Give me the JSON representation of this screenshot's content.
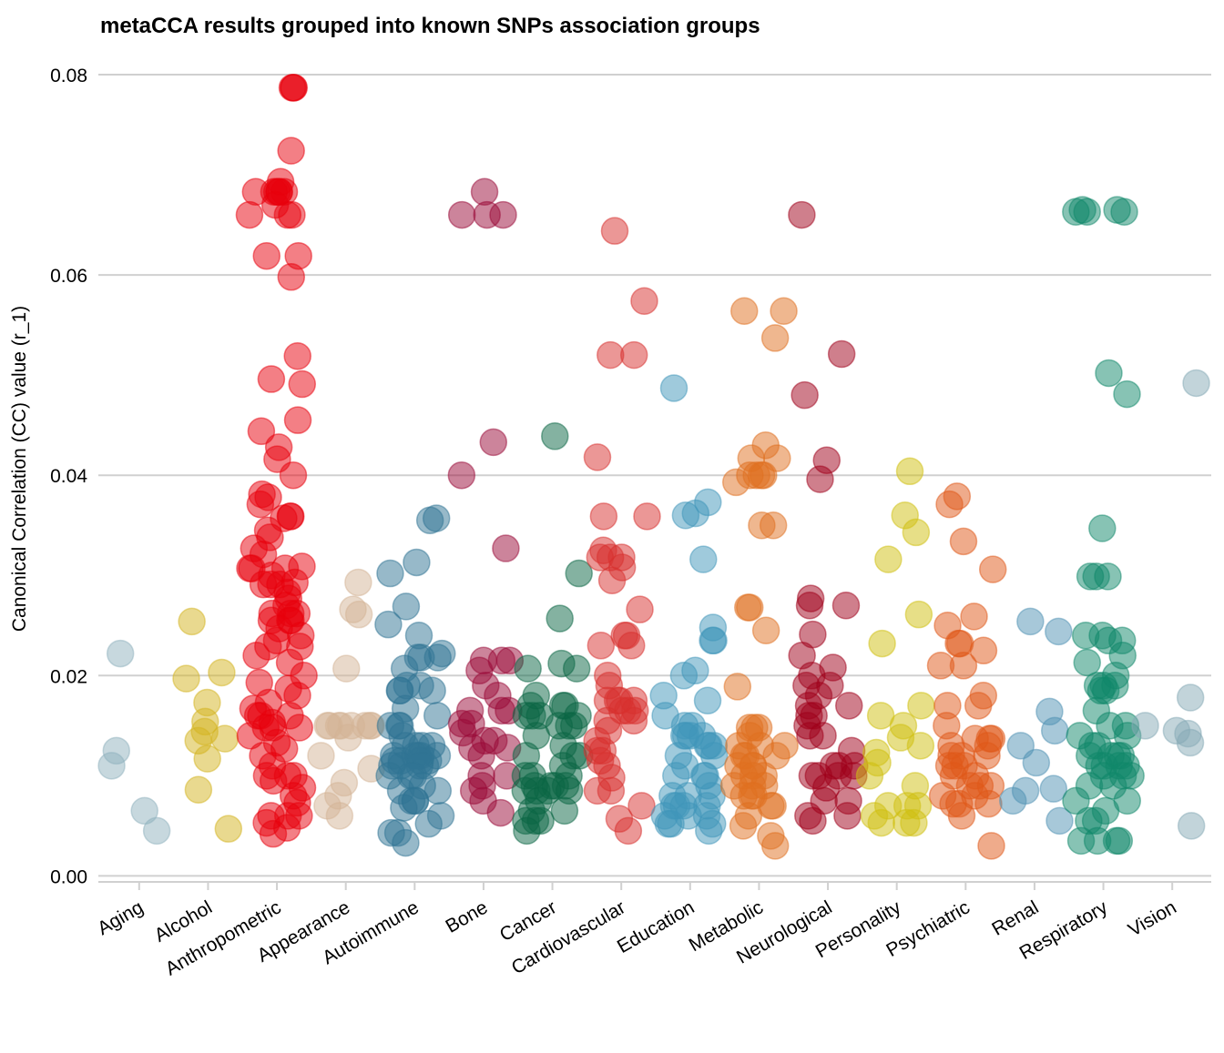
{
  "chart_data": {
    "type": "strip",
    "title": "metaCCA results grouped into known SNPs association groups",
    "y_label": "Canonical Correlation (CC) value (r_1)",
    "categories": [
      "Aging",
      "Alcohol",
      "Anthropometric",
      "Appearance",
      "Autoimmune",
      "Bone",
      "Cancer",
      "Cardiovascular",
      "Education",
      "Metabolic",
      "Neurological",
      "Personality",
      "Psychiatric",
      "Renal",
      "Respiratory",
      "Vision"
    ],
    "colors": [
      "#8fb2bd",
      "#d4b320",
      "#e8000b",
      "#d4b395",
      "#2f7393",
      "#990a38",
      "#0a6644",
      "#d8302e",
      "#3f95b9",
      "#e07020",
      "#a0001a",
      "#d0c010",
      "#e05818",
      "#4f92b4",
      "#10876a",
      "#86aab6"
    ],
    "ylim": [
      -0.0006,
      0.082
    ],
    "yticks": [
      {
        "value": 0,
        "label": "0.00"
      },
      0.02,
      0.04,
      0.06,
      0.08
    ],
    "grid": true,
    "values": [
      [
        0.011,
        0.0045,
        0.0125,
        0.0065,
        0.0222
      ],
      [
        0.0086,
        0.0197,
        0.0173,
        0.0135,
        0.0154,
        0.0254,
        0.0047,
        0.0137,
        0.0203,
        0.0144,
        0.0117
      ],
      [
        0.0787,
        0.0787,
        0.0787,
        0.0724,
        0.0683,
        0.0683,
        0.0683,
        0.0683,
        0.0683,
        0.0683,
        0.0693,
        0.067,
        0.066,
        0.066,
        0.066,
        0.0619,
        0.0619,
        0.0598,
        0.0519,
        0.0496,
        0.0491,
        0.0455,
        0.0444,
        0.0428,
        0.0416,
        0.04,
        0.0381,
        0.0378,
        0.0371,
        0.0359,
        0.0359,
        0.0357,
        0.0345,
        0.0338,
        0.0327,
        0.0321,
        0.0309,
        0.0307,
        0.0307,
        0.0307,
        0.03,
        0.0293,
        0.0291,
        0.0291,
        0.0291,
        0.0283,
        0.0277,
        0.027,
        0.0262,
        0.0262,
        0.0262,
        0.0255,
        0.0255,
        0.0255,
        0.0247,
        0.024,
        0.0235,
        0.0229,
        0.0229,
        0.022,
        0.0213,
        0.02,
        0.0193,
        0.0187,
        0.018,
        0.0173,
        0.0167,
        0.016,
        0.016,
        0.016,
        0.0153,
        0.0148,
        0.0148,
        0.0148,
        0.014,
        0.0133,
        0.0127,
        0.012,
        0.011,
        0.01,
        0.01,
        0.01,
        0.0095,
        0.0088,
        0.008,
        0.0073,
        0.006,
        0.006,
        0.006,
        0.0053,
        0.0048,
        0.0042
      ],
      [
        0.0293,
        0.0266,
        0.0261,
        0.0207,
        0.015,
        0.015,
        0.015,
        0.015,
        0.015,
        0.015,
        0.015,
        0.015,
        0.0138,
        0.012,
        0.0107,
        0.0093,
        0.008,
        0.007,
        0.006
      ],
      [
        0.0357,
        0.0355,
        0.0313,
        0.0302,
        0.0269,
        0.0251,
        0.024,
        0.0222,
        0.0218,
        0.0218,
        0.0218,
        0.0207,
        0.019,
        0.019,
        0.0185,
        0.0185,
        0.0185,
        0.0167,
        0.016,
        0.015,
        0.015,
        0.015,
        0.014,
        0.013,
        0.013,
        0.013,
        0.013,
        0.012,
        0.012,
        0.012,
        0.012,
        0.012,
        0.0115,
        0.0115,
        0.0115,
        0.0115,
        0.011,
        0.011,
        0.011,
        0.011,
        0.01,
        0.01,
        0.01,
        0.009,
        0.0085,
        0.0085,
        0.0075,
        0.0075,
        0.0075,
        0.0068,
        0.006,
        0.0052,
        0.0043,
        0.0043,
        0.0033
      ],
      [
        0.0683,
        0.066,
        0.066,
        0.066,
        0.0433,
        0.04,
        0.0327,
        0.0215,
        0.0215,
        0.0215,
        0.0205,
        0.019,
        0.018,
        0.0165,
        0.0165,
        0.0165,
        0.0152,
        0.0152,
        0.0143,
        0.0135,
        0.0135,
        0.0128,
        0.0128,
        0.012,
        0.01,
        0.01,
        0.009,
        0.0085,
        0.0075,
        0.0063
      ],
      [
        0.0439,
        0.0302,
        0.0257,
        0.0212,
        0.0207,
        0.0207,
        0.018,
        0.017,
        0.017,
        0.017,
        0.016,
        0.016,
        0.016,
        0.016,
        0.015,
        0.015,
        0.015,
        0.014,
        0.013,
        0.012,
        0.012,
        0.012,
        0.011,
        0.01,
        0.01,
        0.01,
        0.009,
        0.009,
        0.009,
        0.009,
        0.0085,
        0.0085,
        0.0085,
        0.0085,
        0.0075,
        0.0065,
        0.0065,
        0.0055,
        0.0055,
        0.0055,
        0.0045
      ],
      [
        0.0644,
        0.0574,
        0.052,
        0.052,
        0.0418,
        0.0359,
        0.0359,
        0.0325,
        0.0318,
        0.0318,
        0.0318,
        0.0308,
        0.0295,
        0.0266,
        0.024,
        0.024,
        0.023,
        0.023,
        0.02,
        0.019,
        0.0175,
        0.0175,
        0.0175,
        0.0175,
        0.0165,
        0.0165,
        0.0165,
        0.0155,
        0.0155,
        0.0145,
        0.0135,
        0.0125,
        0.0125,
        0.0115,
        0.011,
        0.0098,
        0.0085,
        0.0085,
        0.007,
        0.0057,
        0.0045
      ],
      [
        0.0487,
        0.0373,
        0.0362,
        0.036,
        0.0316,
        0.0248,
        0.0235,
        0.0235,
        0.0205,
        0.02,
        0.018,
        0.0175,
        0.016,
        0.015,
        0.015,
        0.014,
        0.014,
        0.014,
        0.014,
        0.013,
        0.013,
        0.013,
        0.012,
        0.012,
        0.011,
        0.01,
        0.01,
        0.01,
        0.009,
        0.008,
        0.008,
        0.008,
        0.007,
        0.007,
        0.007,
        0.007,
        0.006,
        0.006,
        0.006,
        0.0052,
        0.0052,
        0.0052,
        0.0045
      ],
      [
        0.0564,
        0.0564,
        0.0537,
        0.043,
        0.0417,
        0.0417,
        0.04,
        0.04,
        0.04,
        0.04,
        0.0393,
        0.035,
        0.035,
        0.0268,
        0.0268,
        0.0245,
        0.0189,
        0.0148,
        0.0148,
        0.0148,
        0.014,
        0.013,
        0.013,
        0.013,
        0.012,
        0.012,
        0.012,
        0.011,
        0.011,
        0.011,
        0.01,
        0.01,
        0.01,
        0.009,
        0.009,
        0.009,
        0.008,
        0.008,
        0.008,
        0.007,
        0.007,
        0.006,
        0.005,
        0.004,
        0.003
      ],
      [
        0.066,
        0.0521,
        0.048,
        0.0415,
        0.0396,
        0.0277,
        0.027,
        0.027,
        0.0241,
        0.022,
        0.0208,
        0.02,
        0.019,
        0.019,
        0.018,
        0.017,
        0.017,
        0.016,
        0.016,
        0.015,
        0.014,
        0.014,
        0.0125,
        0.011,
        0.011,
        0.011,
        0.01,
        0.01,
        0.01,
        0.01,
        0.0088,
        0.0075,
        0.0075,
        0.006,
        0.006,
        0.0055
      ],
      [
        0.0404,
        0.036,
        0.0343,
        0.0316,
        0.0261,
        0.0232,
        0.017,
        0.016,
        0.015,
        0.0138,
        0.013,
        0.0123,
        0.0113,
        0.01,
        0.009,
        0.007,
        0.007,
        0.007,
        0.006,
        0.0053,
        0.0053,
        0.0053
      ],
      [
        0.0379,
        0.0371,
        0.0334,
        0.0306,
        0.0259,
        0.025,
        0.0232,
        0.0232,
        0.0225,
        0.021,
        0.021,
        0.018,
        0.017,
        0.017,
        0.015,
        0.0137,
        0.0137,
        0.0137,
        0.013,
        0.013,
        0.012,
        0.012,
        0.012,
        0.011,
        0.011,
        0.011,
        0.01,
        0.01,
        0.009,
        0.009,
        0.009,
        0.008,
        0.008,
        0.0072,
        0.0072,
        0.0072,
        0.006,
        0.003
      ],
      [
        0.0254,
        0.0244,
        0.0164,
        0.0145,
        0.013,
        0.0113,
        0.0087,
        0.0085,
        0.0075,
        0.0055
      ],
      [
        0.0665,
        0.0665,
        0.0663,
        0.0663,
        0.0663,
        0.0502,
        0.0481,
        0.0347,
        0.0299,
        0.0299,
        0.0299,
        0.024,
        0.024,
        0.0235,
        0.0235,
        0.022,
        0.0213,
        0.02,
        0.019,
        0.019,
        0.019,
        0.0185,
        0.0185,
        0.0165,
        0.015,
        0.015,
        0.014,
        0.014,
        0.013,
        0.013,
        0.012,
        0.012,
        0.012,
        0.012,
        0.011,
        0.011,
        0.011,
        0.011,
        0.01,
        0.01,
        0.01,
        0.009,
        0.009,
        0.0075,
        0.0075,
        0.0065,
        0.0055,
        0.0055,
        0.0035,
        0.0035,
        0.0035,
        0.0035
      ],
      [
        0.0492,
        0.0178,
        0.015,
        0.0145,
        0.0142,
        0.0133,
        0.005
      ]
    ]
  }
}
